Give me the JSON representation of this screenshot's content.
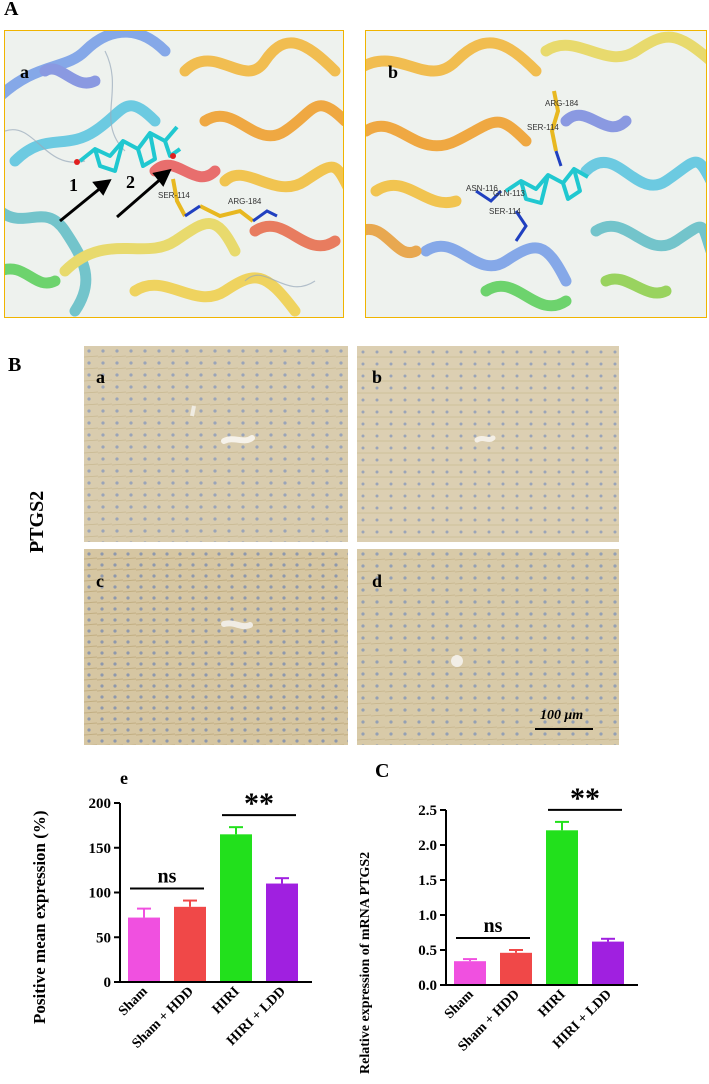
{
  "figure": {
    "panel_A": {
      "label": "A",
      "sub_a": {
        "label": "a",
        "arrow_1": "1",
        "arrow_2": "2",
        "residues": [
          "SER-114",
          "ARG-184"
        ]
      },
      "sub_b": {
        "label": "b",
        "residues": [
          "ARG-184",
          "SER-114",
          "ASN-116",
          "GLN-113",
          "SER-114"
        ]
      }
    },
    "panel_B": {
      "label": "B",
      "row_label": "PTGS2",
      "images": [
        "a",
        "b",
        "c",
        "d"
      ],
      "scale_bar": "100 μm"
    },
    "panel_C": {
      "label": "C"
    }
  },
  "chart_data": [
    {
      "type": "bar",
      "panel_label": "e",
      "ylabel": "Positive mean expression (%)",
      "categories": [
        "Sham",
        "Sham + HDD",
        "HIRI",
        "HIRI + LDD"
      ],
      "values": [
        72,
        84,
        165,
        110
      ],
      "errors": [
        10,
        7,
        8,
        6
      ],
      "colors": [
        "#f050e0",
        "#f04848",
        "#22e01c",
        "#a020e0"
      ],
      "ylim": [
        0,
        200
      ],
      "yticks": [
        "0",
        "50",
        "100",
        "150",
        "200"
      ],
      "annotations": [
        {
          "text": "ns",
          "between": [
            0,
            1
          ]
        },
        {
          "text": "**",
          "between": [
            2,
            3
          ]
        }
      ]
    },
    {
      "type": "bar",
      "panel_label": "",
      "ylabel": "Relative expression of mRNA PTGS2",
      "categories": [
        "Sham",
        "Sham + HDD",
        "HIRI",
        "HIRI + LDD"
      ],
      "values": [
        0.34,
        0.46,
        2.21,
        0.62
      ],
      "errors": [
        0.03,
        0.04,
        0.12,
        0.04
      ],
      "colors": [
        "#f050e0",
        "#f04848",
        "#22e01c",
        "#a020e0"
      ],
      "ylim": [
        0,
        2.5
      ],
      "yticks": [
        "0.0",
        "0.5",
        "1.0",
        "1.5",
        "2.0",
        "2.5"
      ],
      "annotations": [
        {
          "text": "ns",
          "between": [
            0,
            1
          ]
        },
        {
          "text": "**",
          "between": [
            2,
            3
          ]
        }
      ]
    }
  ]
}
